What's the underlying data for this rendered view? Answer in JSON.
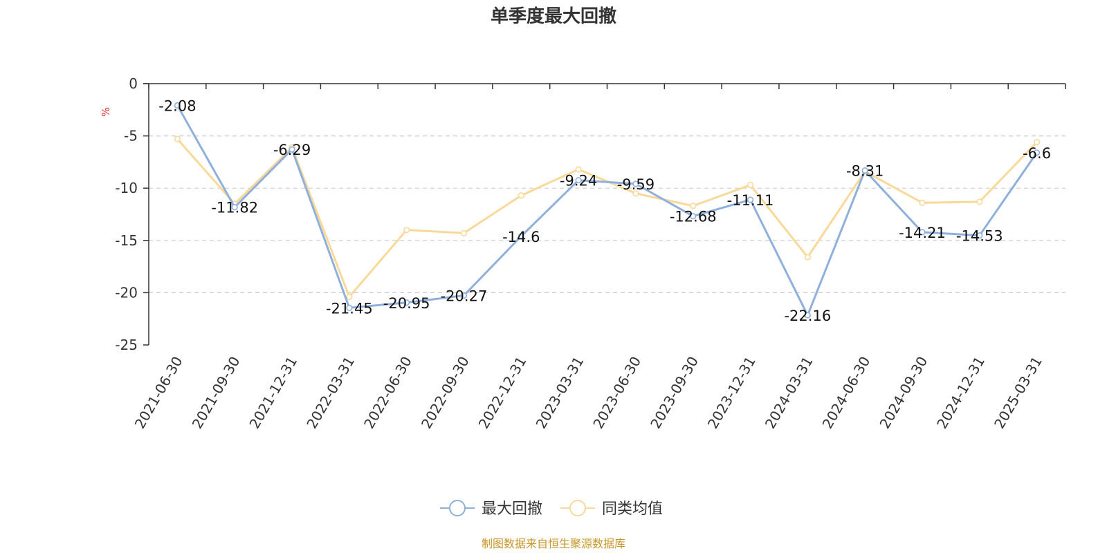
{
  "chart_data": {
    "type": "line",
    "title": "单季度最大回撤",
    "ylabel": "%",
    "ylim": [
      -25,
      0
    ],
    "yticks": [
      0,
      -5,
      -10,
      -15,
      -20,
      -25
    ],
    "grid": "horizontal-dashed",
    "legend_position": "bottom-center",
    "categories": [
      "2021-06-30",
      "2021-09-30",
      "2021-12-31",
      "2022-03-31",
      "2022-06-30",
      "2022-09-30",
      "2022-12-31",
      "2023-03-31",
      "2023-06-30",
      "2023-09-30",
      "2023-12-31",
      "2024-03-31",
      "2024-06-30",
      "2024-09-30",
      "2024-12-31",
      "2025-03-31"
    ],
    "series": [
      {
        "name": "最大回撤",
        "color": "#8fb0dc",
        "values": [
          -2.08,
          -11.82,
          -6.29,
          -21.45,
          -20.95,
          -20.27,
          -14.6,
          -9.24,
          -9.59,
          -12.68,
          -11.11,
          -22.16,
          -8.31,
          -14.21,
          -14.53,
          -6.6
        ],
        "labels": [
          "-2.08",
          "-11.82",
          "-6.29",
          "-21.45",
          "-20.95",
          "-20.27",
          "-14.6",
          "-9.24",
          "-9.59",
          "-12.68",
          "-11.11",
          "-22.16",
          "-8.31",
          "-14.21",
          "-14.53",
          "-6.6"
        ]
      },
      {
        "name": "同类均值",
        "color": "#f9d99a",
        "values": [
          -5.3,
          -11.5,
          -6.1,
          -20.4,
          -14.0,
          -14.3,
          -10.7,
          -8.2,
          -10.5,
          -11.7,
          -9.7,
          -16.6,
          -8.4,
          -11.4,
          -11.3,
          -5.6
        ]
      }
    ],
    "source": "制图数据来自恒生聚源数据库",
    "colors": {
      "axis": "#333333",
      "grid": "#cccccc",
      "ylabel": "#e03030",
      "source": "#c8962a"
    }
  }
}
